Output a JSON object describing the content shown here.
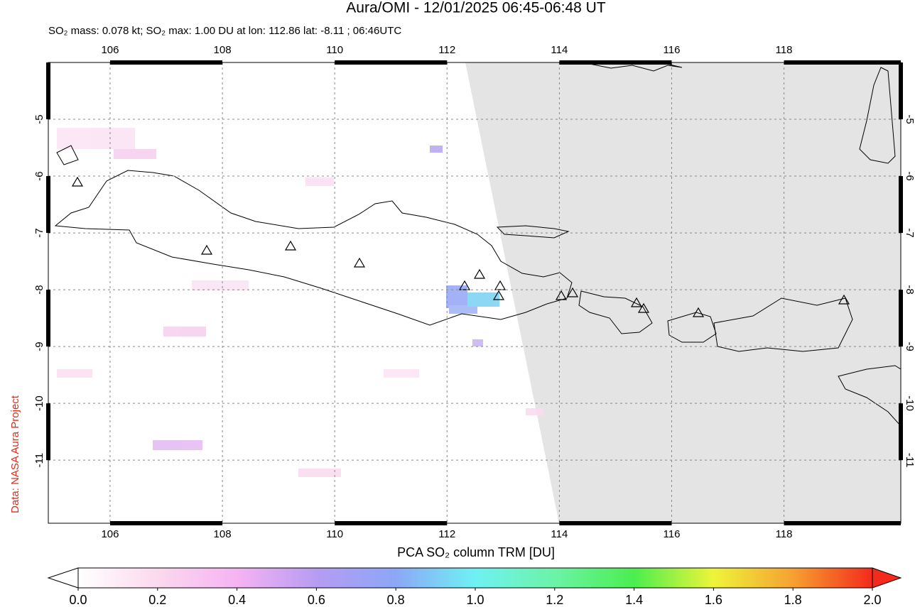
{
  "title": "Aura/OMI - 12/01/2025 06:45-06:48 UT",
  "subtitle": "SO₂ mass: 0.078 kt; SO₂ max: 1.00 DU at lon: 112.86 lat: -8.11 ; 06:46UTC",
  "credit": "Data: NASA Aura Project",
  "map": {
    "lonlim": [
      104.9,
      120.08
    ],
    "latlim": [
      -4,
      -12.11
    ],
    "lon_ticks": [
      106,
      108,
      110,
      112,
      114,
      116,
      118
    ],
    "lat_ticks": [
      -5,
      -6,
      -7,
      -8,
      -9,
      -10,
      -11
    ],
    "grid": true
  },
  "colorbar": {
    "label": "PCA SO₂ column TRM [DU]",
    "lim": [
      0,
      2
    ],
    "ticks": [
      {
        "value": 0,
        "label": "0.0"
      },
      {
        "value": 0.2,
        "label": "0.2"
      },
      {
        "value": 0.4,
        "label": "0.4"
      },
      {
        "value": 0.6,
        "label": "0.6"
      },
      {
        "value": 0.8,
        "label": "0.8"
      },
      {
        "value": 1,
        "label": "1.0"
      },
      {
        "value": 1.2,
        "label": "1.2"
      },
      {
        "value": 1.4,
        "label": "1.4"
      },
      {
        "value": 1.6,
        "label": "1.6"
      },
      {
        "value": 1.8,
        "label": "1.8"
      },
      {
        "value": 2,
        "label": "2.0"
      }
    ]
  }
}
